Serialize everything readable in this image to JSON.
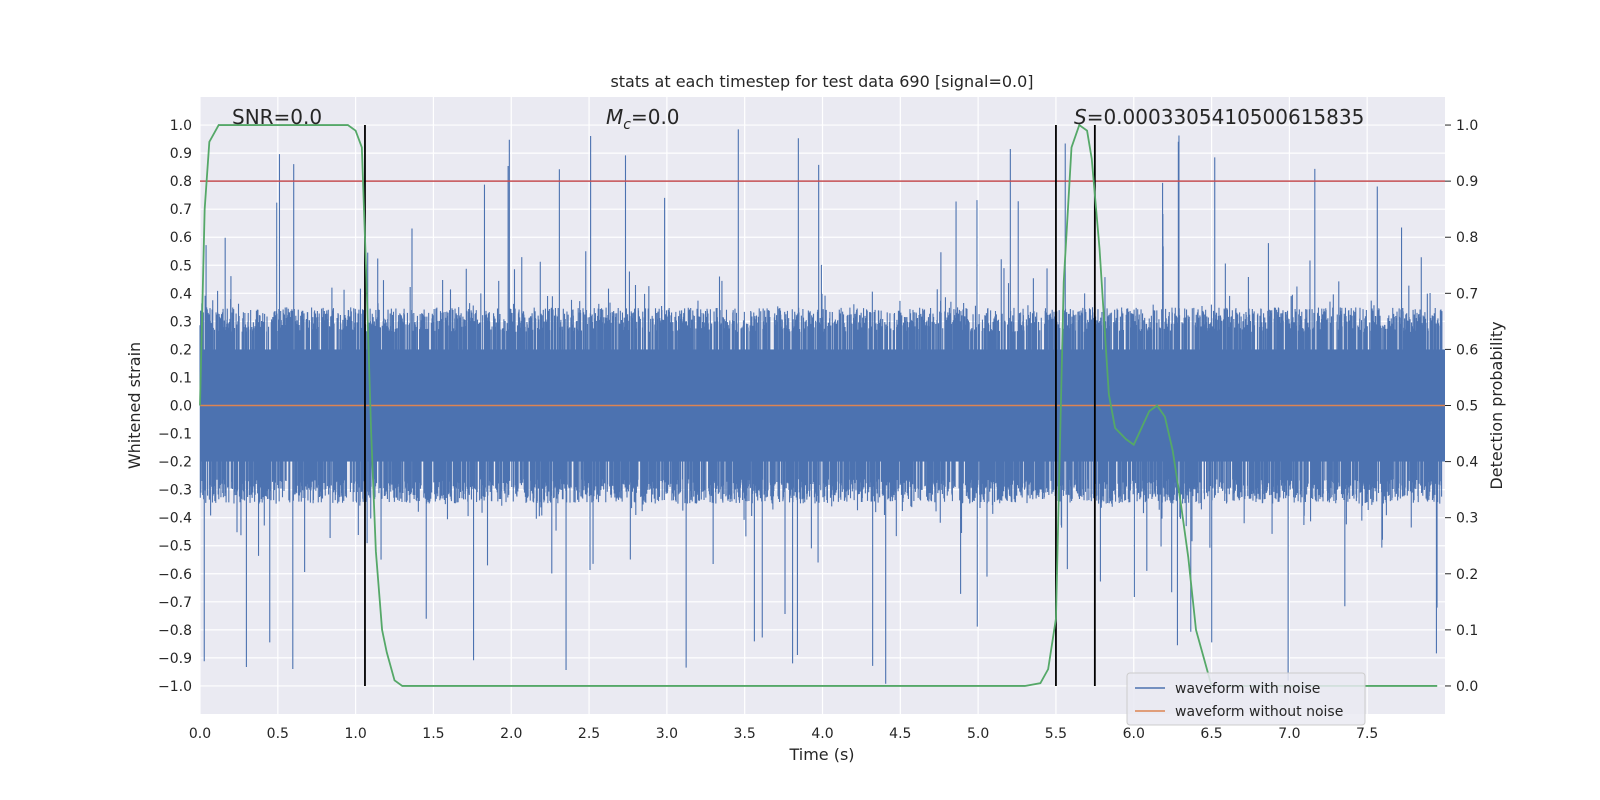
{
  "chart_data": {
    "type": "line",
    "title": "stats at each timestep for test data 690 [signal=0.0]",
    "xlabel": "Time (s)",
    "ylabel": "Whitened strain",
    "y2label": "Detection probability",
    "xlim": [
      0,
      8
    ],
    "ylim": [
      -1.1,
      1.1
    ],
    "y2lim": [
      -0.05,
      1.05
    ],
    "xticks": [
      0,
      0.5,
      1,
      1.5,
      2,
      2.5,
      3,
      3.5,
      4,
      4.5,
      5,
      5.5,
      6,
      6.5,
      7,
      7.5
    ],
    "xtick_labels": [
      "0.0",
      "0.5",
      "1.0",
      "1.5",
      "2.0",
      "2.5",
      "3.0",
      "3.5",
      "4.0",
      "4.5",
      "5.0",
      "5.5",
      "6.0",
      "6.5",
      "7.0",
      "7.5"
    ],
    "yticks": [
      -1,
      -0.9,
      -0.8,
      -0.7,
      -0.6,
      -0.5,
      -0.4,
      -0.3,
      -0.2,
      -0.1,
      0,
      0.1,
      0.2,
      0.3,
      0.4,
      0.5,
      0.6,
      0.7,
      0.8,
      0.9,
      1
    ],
    "ytick_labels": [
      "−1.0",
      "−0.9",
      "−0.8",
      "−0.7",
      "−0.6",
      "−0.5",
      "−0.4",
      "−0.3",
      "−0.2",
      "−0.1",
      "0.0",
      "0.1",
      "0.2",
      "0.3",
      "0.4",
      "0.5",
      "0.6",
      "0.7",
      "0.8",
      "0.9",
      "1.0"
    ],
    "y2ticks": [
      0,
      0.1,
      0.2,
      0.3,
      0.4,
      0.5,
      0.6,
      0.7,
      0.8,
      0.9,
      1
    ],
    "y2tick_labels": [
      "0.0",
      "0.1",
      "0.2",
      "0.3",
      "0.4",
      "0.5",
      "0.6",
      "0.7",
      "0.8",
      "0.9",
      "1.0"
    ],
    "grid": true,
    "legend_position": "bottom-right",
    "annotations": {
      "snr": "SNR=0.0",
      "mc_symbol": "M",
      "mc_sub": "c",
      "mc_value": "=0.0",
      "s_symbol": "S",
      "s_value": "=0.0003305410500615835"
    },
    "series": [
      {
        "name": "waveform with noise",
        "color": "#4c72b0",
        "noise_model": {
          "core_amplitude": 0.35,
          "spike_max_positive": 1.0,
          "spike_max_negative": -1.0,
          "n_samples": 4096,
          "seed": 690
        }
      },
      {
        "name": "waveform without noise",
        "color": "#dd8452",
        "values_constant": 0.0
      },
      {
        "name": "detection probability",
        "color": "#55a868",
        "axis": "right",
        "in_legend": false,
        "x": [
          0.0,
          0.03,
          0.06,
          0.12,
          0.2,
          0.4,
          0.6,
          0.8,
          0.95,
          1.0,
          1.04,
          1.07,
          1.1,
          1.13,
          1.17,
          1.2,
          1.25,
          1.3,
          1.4,
          2.0,
          3.0,
          4.0,
          5.0,
          5.3,
          5.4,
          5.45,
          5.5,
          5.55,
          5.6,
          5.65,
          5.7,
          5.73,
          5.78,
          5.84,
          5.88,
          5.95,
          6.0,
          6.05,
          6.1,
          6.15,
          6.2,
          6.25,
          6.3,
          6.35,
          6.4,
          6.45,
          6.5,
          7.0,
          7.95
        ],
        "values": [
          0.5,
          0.85,
          0.97,
          1.0,
          1.0,
          1.0,
          1.0,
          1.0,
          1.0,
          0.99,
          0.96,
          0.72,
          0.45,
          0.24,
          0.1,
          0.06,
          0.01,
          0.0,
          0.0,
          0.0,
          0.0,
          0.0,
          0.0,
          0.0,
          0.005,
          0.03,
          0.12,
          0.72,
          0.96,
          1.0,
          0.99,
          0.94,
          0.78,
          0.52,
          0.46,
          0.44,
          0.43,
          0.46,
          0.49,
          0.5,
          0.48,
          0.42,
          0.33,
          0.23,
          0.1,
          0.05,
          0.0,
          0.0,
          0.0
        ]
      },
      {
        "name": "detection threshold",
        "color": "#c44e52",
        "axis": "right",
        "in_legend": false,
        "values_constant": 0.9
      }
    ],
    "vertical_markers_x": [
      1.06,
      5.5,
      5.75
    ]
  }
}
